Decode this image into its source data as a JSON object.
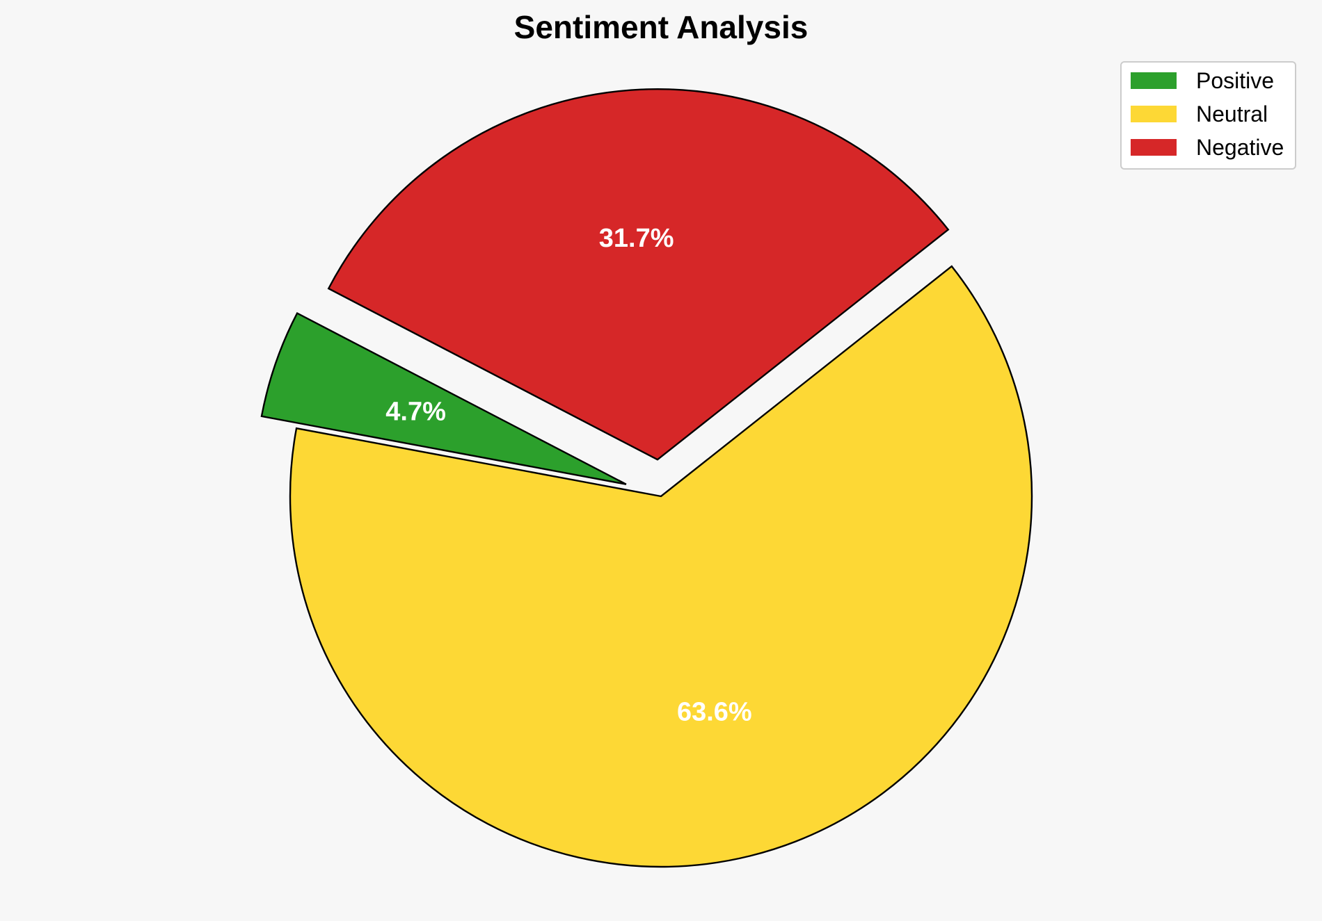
{
  "chart_data": {
    "type": "pie",
    "title": "Sentiment Analysis",
    "slices": [
      {
        "label": "Positive",
        "value": 4.7,
        "display": "4.7%",
        "color": "#2ca02c",
        "exploded": true
      },
      {
        "label": "Neutral",
        "value": 63.6,
        "display": "63.6%",
        "color": "#fdd835",
        "exploded": false
      },
      {
        "label": "Negative",
        "value": 31.7,
        "display": "31.7%",
        "color": "#d62728",
        "exploded": true
      }
    ],
    "start_angle_deg": 152.5,
    "direction": "counterclockwise",
    "legend": {
      "position": "top-right",
      "entries": [
        "Positive",
        "Neutral",
        "Negative"
      ]
    },
    "background": "#f7f7f7",
    "edge_color": "#000000",
    "label_color": "#ffffff"
  }
}
